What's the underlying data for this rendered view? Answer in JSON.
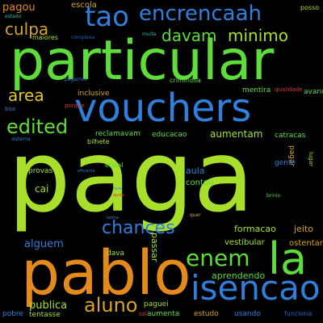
{
  "words": [
    "paga",
    "particular",
    "pablo",
    "vouchers",
    "isencao",
    "la",
    "tao",
    "encrencaah",
    "enem",
    "chances",
    "aluno",
    "edited",
    "culpa",
    "davam",
    "minimo",
    "area",
    "pagou",
    "escola",
    "maiores",
    "estado",
    "complexa",
    "muita",
    "criminosa",
    "posso",
    "pagar",
    "pagamos",
    "inclusive",
    "mentira",
    "qualidade",
    "avancava",
    "boa",
    "porque",
    "sistema",
    "reclamavam",
    "educacao",
    "aumentam",
    "catracas",
    "bilhete",
    "provas",
    "eficiente",
    "edital",
    "gente",
    "lugar",
    "cai",
    "aula",
    "contou",
    "ajuda",
    "livre",
    "brinio",
    "terma",
    "quer",
    "formacao",
    "jeito",
    "alguem",
    "passar",
    "vestibular",
    "ostentar",
    "dava",
    "aprendendo",
    "publica",
    "paguei",
    "pobre",
    "tentasse",
    "sai",
    "aumenta",
    "estudo",
    "usando",
    "funciona"
  ]
}
